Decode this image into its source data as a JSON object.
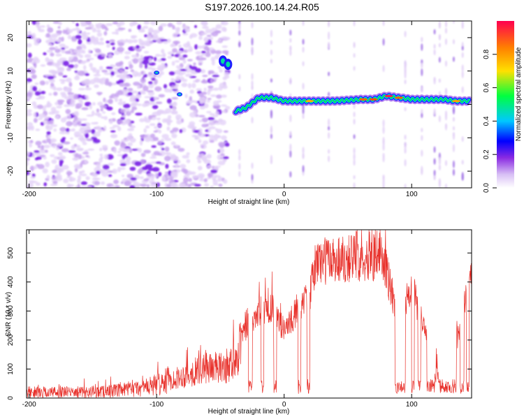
{
  "title": "S197.2026.100.14.24.R05",
  "colors": {
    "snr_line": "#e8302a",
    "spectrogram_noise_light": "#e7d6f7",
    "spectrogram_noise_dark": "#7a1fe6"
  },
  "chart_data": [
    {
      "type": "heatmap",
      "name": "spectrogram",
      "xlabel": "Height of straight line (km)",
      "ylabel": "Frequency (Hz)",
      "xlim": [
        -202,
        147
      ],
      "ylim": [
        -25,
        25
      ],
      "xticks": [
        -200,
        -100,
        0,
        100
      ],
      "yticks": [
        -20,
        -10,
        0,
        10,
        20
      ],
      "colorbar": {
        "label": "Normalized spectral amplitude",
        "range": [
          0.0,
          1.0
        ],
        "ticks": [
          0.0,
          0.2,
          0.4,
          0.6,
          0.8
        ],
        "tick_labels": [
          "0.0",
          "0.2",
          "0.4",
          "0.6",
          "0.8"
        ],
        "colormap": [
          "#ffffff",
          "#d8c0f5",
          "#8a2be2",
          "#0000ff",
          "#00c8ff",
          "#00ff40",
          "#ffe000",
          "#ff8000",
          "#ff0050"
        ]
      },
      "ridge": {
        "description": "signal ridge near 0-2 Hz from -40 km to 147 km; brief feature ~12 Hz at -48 km",
        "points": [
          {
            "x": -48,
            "y": 13,
            "amp": 0.5
          },
          {
            "x": -42,
            "y": 12,
            "amp": 0.4
          },
          {
            "x": -38,
            "y": -2,
            "amp": 0.35
          },
          {
            "x": -30,
            "y": -1,
            "amp": 0.4
          },
          {
            "x": -20,
            "y": 2,
            "amp": 0.45
          },
          {
            "x": -10,
            "y": 2,
            "amp": 0.45
          },
          {
            "x": 0,
            "y": 1,
            "amp": 0.4
          },
          {
            "x": 20,
            "y": 1,
            "amp": 0.7
          },
          {
            "x": 40,
            "y": 1,
            "amp": 0.6
          },
          {
            "x": 60,
            "y": 1.5,
            "amp": 0.8
          },
          {
            "x": 70,
            "y": 1.5,
            "amp": 0.85
          },
          {
            "x": 80,
            "y": 2.5,
            "amp": 0.9
          },
          {
            "x": 90,
            "y": 2,
            "amp": 0.85
          },
          {
            "x": 100,
            "y": 1.5,
            "amp": 0.5
          },
          {
            "x": 115,
            "y": 1.5,
            "amp": 0.6
          },
          {
            "x": 125,
            "y": 1.5,
            "amp": 0.55
          },
          {
            "x": 135,
            "y": 1,
            "amp": 0.7
          },
          {
            "x": 145,
            "y": 1,
            "amp": 0.45
          }
        ]
      }
    },
    {
      "type": "line",
      "name": "snr",
      "xlabel": "Height of straight line (km)",
      "ylabel": "SNR (10 * v/v)",
      "xlim": [
        -202,
        147
      ],
      "ylim": [
        0,
        580
      ],
      "xticks": [
        -200,
        -100,
        0,
        100
      ],
      "yticks": [
        0,
        100,
        200,
        300,
        400,
        500
      ],
      "envelope": {
        "x": [
          -202,
          -190,
          -160,
          -130,
          -110,
          -90,
          -70,
          -60,
          -50,
          -40,
          -30,
          -20,
          -10,
          0,
          10,
          20,
          25,
          40,
          60,
          75,
          80,
          85,
          90,
          95,
          100,
          110,
          120,
          130,
          140,
          147
        ],
        "y": [
          20,
          20,
          20,
          25,
          35,
          60,
          90,
          110,
          100,
          120,
          240,
          300,
          320,
          230,
          300,
          350,
          470,
          480,
          490,
          490,
          450,
          350,
          200,
          300,
          380,
          250,
          100,
          70,
          300,
          400
        ]
      }
    }
  ]
}
